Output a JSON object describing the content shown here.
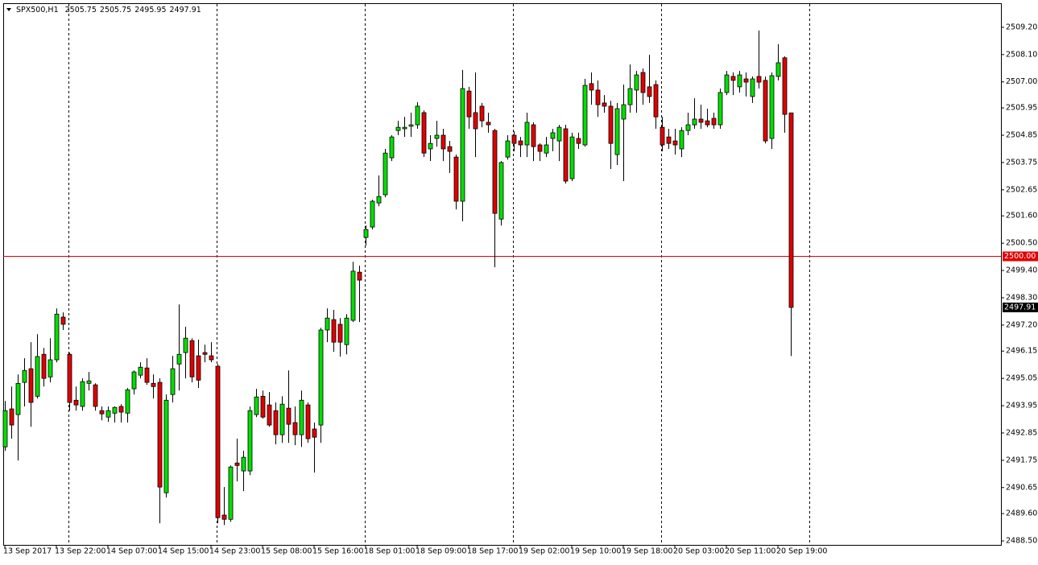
{
  "chart_data": {
    "type": "candlestick",
    "title": "SPX500,H1",
    "categories": [
      "13 Sep 2017",
      null,
      null,
      null,
      null,
      null,
      null,
      null,
      "13 Sep 22:00",
      null,
      null,
      null,
      null,
      null,
      null,
      null,
      "14 Sep 07:00",
      null,
      null,
      null,
      null,
      null,
      null,
      null,
      "14 Sep 15:00",
      null,
      null,
      null,
      null,
      null,
      null,
      null,
      "14 Sep 23:00",
      null,
      null,
      null,
      null,
      null,
      null,
      null,
      "15 Sep 08:00",
      null,
      null,
      null,
      null,
      null,
      null,
      null,
      "15 Sep 16:00",
      null,
      null,
      null,
      null,
      null,
      null,
      null,
      "18 Sep 01:00",
      null,
      null,
      null,
      null,
      null,
      null,
      null,
      "18 Sep 09:00",
      null,
      null,
      null,
      null,
      null,
      null,
      null,
      "18 Sep 17:00",
      null,
      null,
      null,
      null,
      null,
      null,
      null,
      "19 Sep 02:00",
      null,
      null,
      null,
      null,
      null,
      null,
      null,
      "19 Sep 10:00",
      null,
      null,
      null,
      null,
      null,
      null,
      null,
      "19 Sep 18:00",
      null,
      null,
      null,
      null,
      null,
      null,
      null,
      "20 Sep 03:00",
      null,
      null,
      null,
      null,
      null,
      null,
      null,
      "20 Sep 11:00",
      null,
      null,
      null,
      null,
      null,
      null,
      null,
      "20 Sep 19:00",
      null,
      null
    ],
    "open": [
      2492.29,
      2493.82,
      2493.59,
      2494.89,
      2495.44,
      2494.33,
      2496.02,
      2495.11,
      2495.8,
      2497.52,
      2496.02,
      2494.17,
      2493.92,
      2494.85,
      2494.79,
      2493.75,
      2493.49,
      2493.65,
      2493.92,
      2493.65,
      2494.63,
      2495.18,
      2495.47,
      2494.85,
      2494.89,
      2490.44,
      2494.4,
      2495.63,
      2496.09,
      2496.57,
      2495.96,
      2496.09,
      2495.96,
      2495.54,
      2489.54,
      2489.37,
      2491.64,
      2491.32,
      2491.32,
      2493.59,
      2494.33,
      2493.98,
      2493.75,
      2492.78,
      2493.85,
      2493.27,
      2492.78,
      2493.98,
      2493.01,
      2493.17,
      2497.0,
      2497.42,
      2497.23,
      2496.41,
      2497.39,
      2499.33,
      2500.73,
      2501.15,
      2502.12,
      2502.45,
      2503.94,
      2505.04,
      2505.11,
      2505.21,
      2505.27,
      2505.76,
      2504.3,
      2504.72,
      2504.85,
      2504.39,
      2503.97,
      2502.19,
      2506.63,
      2505.76,
      2506.02,
      2505.37,
      2505.04,
      2501.47,
      2503.97,
      2504.85,
      2504.62,
      2504.46,
      2505.27,
      2504.46,
      2504.13,
      2504.72,
      2504.62,
      2505.11,
      2503.1,
      2504.72,
      2504.46,
      2506.93,
      2506.67,
      2506.15,
      2506.02,
      2504.07,
      2505.5,
      2506.08,
      2506.67,
      2507.38,
      2506.8,
      2506.89,
      2505.17,
      2504.78,
      2504.62,
      2504.3,
      2505.04,
      2505.27,
      2505.5,
      2505.43,
      2505.53,
      2505.27,
      2506.57,
      2507.22,
      2506.8,
      2507.12,
      2506.41,
      2507.22,
      2507.06,
      2504.72,
      2507.22,
      2507.97,
      2505.75
    ],
    "high": [
      2494.14,
      2494.72,
      2495.21,
      2495.86,
      2496.51,
      2496.83,
      2496.28,
      2496.67,
      2497.87,
      2497.71,
      2496.09,
      2494.72,
      2495.05,
      2495.31,
      2494.85,
      2493.92,
      2493.92,
      2493.92,
      2494.01,
      2494.66,
      2495.37,
      2495.7,
      2495.86,
      2495.21,
      2495.05,
      2494.4,
      2495.96,
      2498.03,
      2497.13,
      2496.67,
      2496.61,
      2496.41,
      2496.51,
      2495.63,
      2490.67,
      2491.54,
      2492.62,
      2492.13,
      2493.92,
      2494.63,
      2494.56,
      2494.5,
      2494.08,
      2494.33,
      2495.37,
      2493.92,
      2494.56,
      2494.08,
      2493.27,
      2497.09,
      2497.87,
      2497.81,
      2497.48,
      2497.64,
      2499.75,
      2499.59,
      2501.21,
      2502.25,
      2503.23,
      2504.3,
      2504.85,
      2505.43,
      2505.59,
      2505.76,
      2506.18,
      2505.85,
      2504.85,
      2505.43,
      2505.11,
      2504.62,
      2504.07,
      2507.48,
      2506.8,
      2507.38,
      2506.15,
      2505.76,
      2505.11,
      2503.81,
      2504.85,
      2505.01,
      2504.78,
      2505.76,
      2505.37,
      2504.52,
      2504.78,
      2505.11,
      2505.27,
      2505.27,
      2504.95,
      2504.95,
      2507.12,
      2507.38,
      2507.06,
      2506.47,
      2506.24,
      2506.15,
      2506.89,
      2507.7,
      2507.44,
      2507.54,
      2508.09,
      2507.06,
      2505.59,
      2505.11,
      2505.11,
      2505.17,
      2505.76,
      2506.34,
      2506.08,
      2505.92,
      2505.76,
      2506.73,
      2507.44,
      2507.38,
      2507.44,
      2507.38,
      2507.22,
      2509.07,
      2507.22,
      2507.38,
      2508.52,
      2508.03,
      2505.75
    ],
    "low": [
      2492.13,
      2492.62,
      2491.74,
      2493.92,
      2493.1,
      2494.24,
      2494.72,
      2494.89,
      2495.7,
      2497.0,
      2493.75,
      2493.75,
      2493.75,
      2494.56,
      2493.75,
      2493.36,
      2493.3,
      2493.27,
      2493.27,
      2493.27,
      2494.4,
      2495.05,
      2494.79,
      2494.24,
      2489.21,
      2490.25,
      2494.08,
      2494.56,
      2495.05,
      2494.89,
      2494.66,
      2495.7,
      2495.7,
      2489.21,
      2489.14,
      2489.27,
      2490.9,
      2490.51,
      2491.15,
      2493.49,
      2493.43,
      2493.1,
      2492.39,
      2492.45,
      2492.45,
      2492.36,
      2492.29,
      2492.45,
      2491.25,
      2492.45,
      2496.51,
      2496.12,
      2495.93,
      2496.02,
      2497.32,
      2497.32,
      2500.4,
      2501.05,
      2501.99,
      2502.35,
      2503.81,
      2504.85,
      2504.78,
      2504.78,
      2505.11,
      2503.97,
      2503.81,
      2504.39,
      2503.81,
      2503.33,
      2501.86,
      2501.38,
      2505.11,
      2503.97,
      2505.17,
      2504.95,
      2499.53,
      2501.21,
      2503.87,
      2504.2,
      2503.97,
      2503.97,
      2503.81,
      2503.81,
      2503.97,
      2504.2,
      2503.81,
      2502.9,
      2503.0,
      2504.3,
      2504.39,
      2506.08,
      2505.59,
      2505.76,
      2503.49,
      2503.65,
      2503.0,
      2505.76,
      2505.76,
      2506.08,
      2506.15,
      2505.11,
      2504.2,
      2504.3,
      2504.07,
      2503.97,
      2504.85,
      2505.11,
      2505.11,
      2505.17,
      2505.11,
      2505.11,
      2506.47,
      2506.47,
      2506.57,
      2506.41,
      2506.15,
      2506.73,
      2504.52,
      2504.3,
      2507.06,
      2504.95,
      2495.95
    ],
    "close": [
      2493.75,
      2493.17,
      2494.85,
      2495.37,
      2494.08,
      2495.93,
      2495.05,
      2495.8,
      2497.64,
      2497.23,
      2494.08,
      2493.98,
      2494.92,
      2494.95,
      2493.92,
      2493.62,
      2493.75,
      2493.88,
      2493.69,
      2494.59,
      2495.31,
      2495.5,
      2494.89,
      2494.72,
      2490.67,
      2494.17,
      2495.44,
      2496.02,
      2496.67,
      2495.11,
      2494.98,
      2496.02,
      2495.8,
      2489.44,
      2489.37,
      2491.48,
      2491.54,
      2491.87,
      2493.75,
      2494.3,
      2493.49,
      2493.17,
      2492.78,
      2494.01,
      2493.2,
      2492.78,
      2494.17,
      2492.62,
      2492.68,
      2497.0,
      2497.48,
      2496.51,
      2496.51,
      2497.48,
      2499.37,
      2499.01,
      2501.05,
      2502.19,
      2502.38,
      2504.13,
      2504.78,
      2505.17,
      2505.17,
      2505.27,
      2506.02,
      2504.13,
      2504.52,
      2504.85,
      2504.3,
      2504.2,
      2502.19,
      2506.73,
      2505.59,
      2505.11,
      2505.43,
      2505.27,
      2501.7,
      2503.75,
      2504.62,
      2504.52,
      2504.46,
      2505.37,
      2504.39,
      2504.2,
      2504.46,
      2504.95,
      2505.17,
      2503.0,
      2504.78,
      2504.52,
      2506.86,
      2506.67,
      2506.08,
      2506.02,
      2504.52,
      2505.92,
      2506.08,
      2506.73,
      2507.28,
      2506.57,
      2506.41,
      2505.59,
      2504.46,
      2504.52,
      2504.46,
      2505.04,
      2505.27,
      2505.5,
      2505.37,
      2505.27,
      2505.27,
      2506.57,
      2507.28,
      2507.06,
      2507.28,
      2506.99,
      2507.12,
      2506.99,
      2504.62,
      2507.25,
      2507.77,
      2505.69,
      2497.91
    ],
    "up_color": "#00e000",
    "down_color": "#e00000",
    "ylim": [
      2488.34,
      2510.17
    ],
    "yticks": [
      {
        "value": 2509.2,
        "label": "2509.20"
      },
      {
        "value": 2508.1,
        "label": "2508.10"
      },
      {
        "value": 2507,
        "label": "2507.00"
      },
      2505.95,
      2504.85,
      2503.75,
      2502.65,
      {
        "value": 2501.6,
        "label": "2501.60"
      },
      {
        "value": 2500.5,
        "label": "2500.50"
      },
      {
        "value": 2499.4,
        "label": "2499.40"
      },
      {
        "value": 2498.3,
        "label": "2498.30"
      },
      {
        "value": 2497.2,
        "label": "2497.20"
      },
      2496.15,
      2495.05,
      2493.95,
      2492.85,
      2491.75,
      2490.65,
      {
        "value": 2489.6,
        "label": "2489.60"
      },
      {
        "value": 2488.5,
        "label": "2488.50"
      }
    ],
    "hline": {
      "value": 2500,
      "label": "2500.00",
      "color": "#e00000"
    }
  }
}
